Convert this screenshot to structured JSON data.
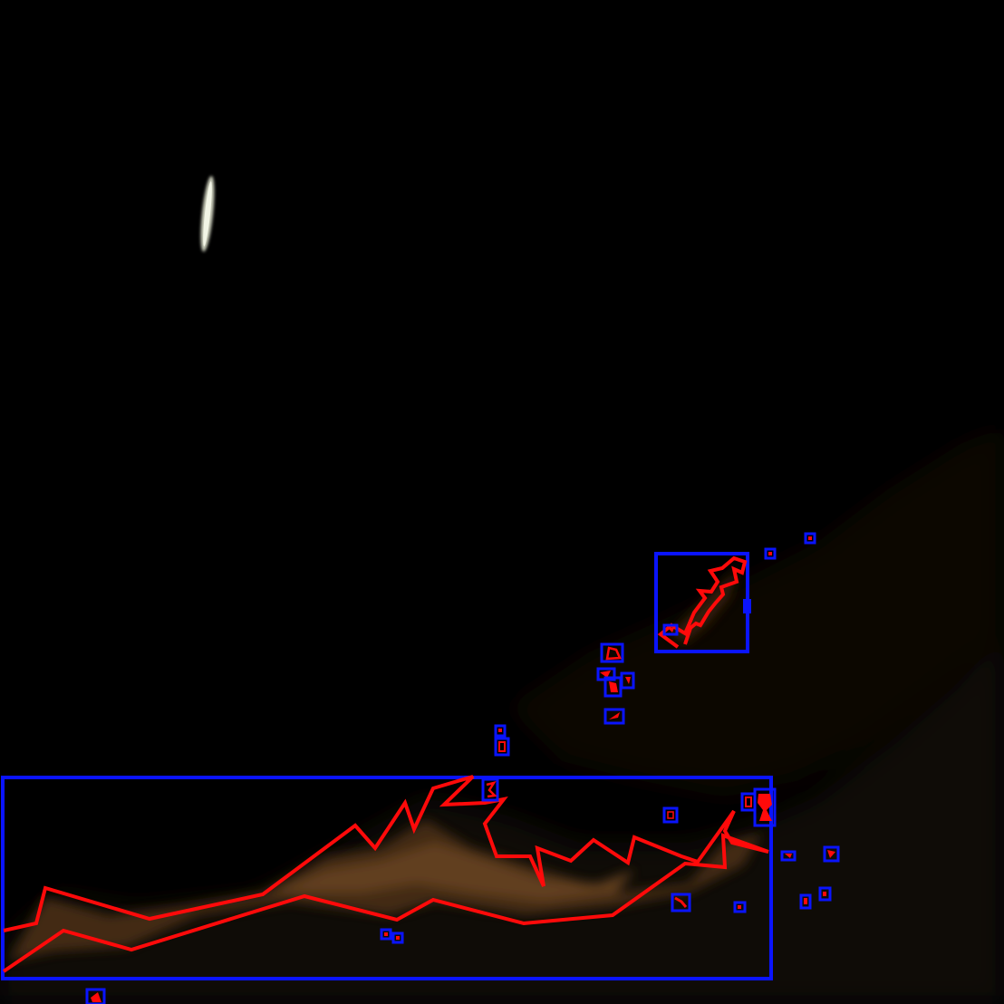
{
  "image": {
    "kind": "satellite imagery with detection overlay",
    "background_color": "#000000",
    "terrain_color": "#5a3a1c",
    "bright_feature_color": "#e8ecd8"
  },
  "overlay": {
    "box_color": "#0a14ff",
    "polygon_color": "#ff0a0a",
    "large_regions": 2,
    "small_regions": 27
  }
}
